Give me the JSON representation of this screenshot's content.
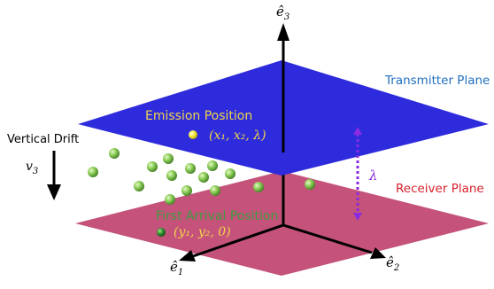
{
  "axes": {
    "e3_label": "ê",
    "e3_sub": "3",
    "e1_label": "ê",
    "e1_sub": "1",
    "e2_label": "ê",
    "e2_sub": "2"
  },
  "planes": {
    "transmitter": {
      "label": "Transmitter Plane",
      "color": "#2d2bdc",
      "label_color": "#1f6fc0"
    },
    "receiver": {
      "label": "Receiver Plane",
      "color": "#c4527a",
      "label_color": "#d6202a"
    }
  },
  "emission": {
    "label": "Emission Position",
    "coords": "(x₁, x₂, λ)",
    "text_color": "#f1d54a",
    "dot_color": "#f4ea3a"
  },
  "first_arrival": {
    "label": "First Arrival Position",
    "coords": "(y₁, y₂, 0)",
    "text_color": "#3f9a3f",
    "dot_color": "#2e8f2e"
  },
  "drift": {
    "label": "Vertical Drift",
    "symbol": "v",
    "symbol_sub": "3"
  },
  "lambda": {
    "symbol": "λ",
    "color": "#8a2be2"
  },
  "particle_color": "#8fd05a"
}
